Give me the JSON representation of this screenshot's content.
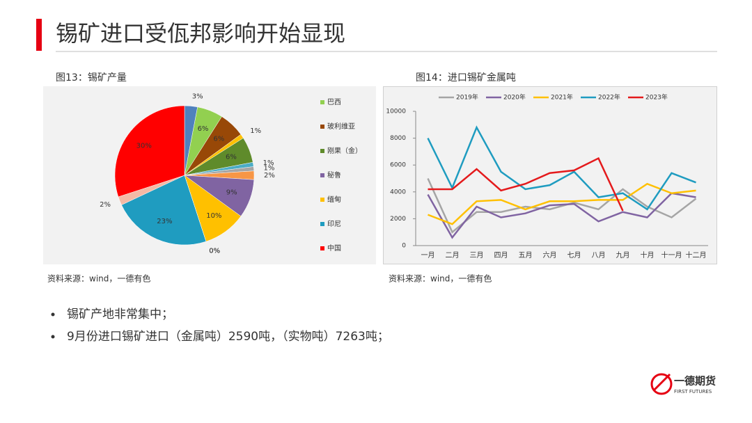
{
  "title": "锡矿进口受佤邦影响开始显现",
  "chart_data": [
    {
      "type": "pie",
      "title": "图13：锡矿产量",
      "categories": [
        null,
        "巴西",
        "玻利维亚",
        null,
        "刚果（金）",
        null,
        null,
        null,
        "秘鲁",
        "缅甸",
        null,
        null,
        "印尼",
        null,
        "中国"
      ],
      "values": [
        3,
        6,
        6,
        1,
        6,
        1,
        1,
        2,
        9,
        10,
        0,
        0,
        23,
        2,
        30
      ],
      "value_labels": [
        "3%",
        "6%",
        "6%",
        "1%",
        "6%",
        "1%",
        "1%",
        "2%",
        "9%",
        "10%",
        "0%",
        "0%",
        "23%",
        "2%",
        "30%"
      ],
      "colors": [
        "#4f81bd",
        "#92d050",
        "#984807",
        "#ffc000",
        "#5f8b2b",
        "#4bacc6",
        "#a5a5a5",
        "#f79646",
        "#8064a2",
        "#ffc000",
        "#7f7f7f",
        "#c0c0c0",
        "#1f9cc0",
        "#f4b9a5",
        "#ff0000"
      ],
      "source": "资料来源：wind，一德有色"
    },
    {
      "type": "line",
      "title": "图14：进口锡矿金属吨",
      "categories": [
        "一月",
        "二月",
        "三月",
        "四月",
        "五月",
        "六月",
        "七月",
        "八月",
        "九月",
        "十月",
        "十一月",
        "十二月"
      ],
      "series": [
        {
          "name": "2019年",
          "color": "#a5a5a5",
          "values": [
            5000,
            1000,
            2500,
            2500,
            2900,
            2700,
            3200,
            2700,
            4200,
            2900,
            2100,
            3500
          ]
        },
        {
          "name": "2020年",
          "color": "#8064a2",
          "values": [
            3800,
            600,
            2900,
            2100,
            2400,
            3000,
            3100,
            1800,
            2500,
            2100,
            3900,
            3600
          ]
        },
        {
          "name": "2021年",
          "color": "#ffc000",
          "values": [
            2300,
            1600,
            3300,
            3400,
            2700,
            3300,
            3300,
            3400,
            3400,
            4600,
            3900,
            4100
          ]
        },
        {
          "name": "2022年",
          "color": "#1f9cc0",
          "values": [
            8000,
            4300,
            8800,
            5500,
            4200,
            4500,
            5500,
            3600,
            3900,
            2700,
            5400,
            4700
          ]
        },
        {
          "name": "2023年",
          "color": "#e41a1c",
          "values": [
            4200,
            4200,
            5700,
            4100,
            4600,
            5400,
            5600,
            6500,
            2590,
            null,
            null,
            null
          ]
        }
      ],
      "ylim": [
        0,
        10000
      ],
      "yticks": [
        0,
        2000,
        4000,
        6000,
        8000,
        10000
      ],
      "source": "资料来源：wind，一德有色"
    }
  ],
  "bullets": [
    "锡矿产地非常集中；",
    "9月份进口锡矿进口（金属吨）2590吨，（实物吨）7263吨；"
  ],
  "logo": {
    "name": "一德期货",
    "english": "FIRST FUTURES"
  }
}
